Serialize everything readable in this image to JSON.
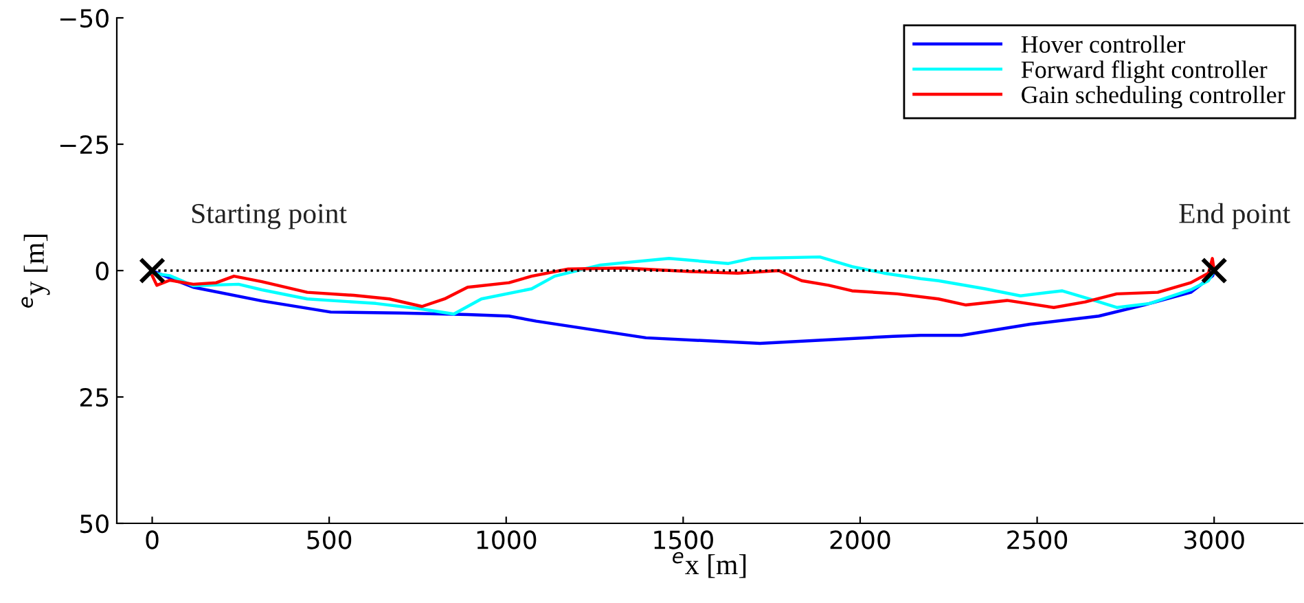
{
  "chart_data": {
    "type": "line",
    "xlabel": "$^{e}$x [m]",
    "ylabel": "$^{e}$y [m]",
    "xlim": [
      -100,
      3250
    ],
    "ylim": [
      50,
      -50
    ],
    "xticks": [
      0,
      500,
      1000,
      1500,
      2000,
      2500,
      3000
    ],
    "yticks": [
      -50,
      -25,
      0,
      25,
      50
    ],
    "grid": false,
    "legend": "top right",
    "series": [
      {
        "name": "Hover controller",
        "color": "#0000ff",
        "x": [
          0,
          50,
          116,
          310,
          504,
          698,
          891,
          1008,
          1085,
          1395,
          1717,
          2093,
          2171,
          2287,
          2481,
          2674,
          2802,
          2934,
          2996,
          3000
        ],
        "values": [
          0,
          1.5,
          3.3,
          6.0,
          8.2,
          8.4,
          8.7,
          9.0,
          10.0,
          13.3,
          14.4,
          13.0,
          12.8,
          12.8,
          10.6,
          9.0,
          6.8,
          4.3,
          1.0,
          0
        ]
      },
      {
        "name": "Forward flight controller",
        "color": "#00ffff",
        "x": [
          0,
          50,
          116,
          244,
          310,
          438,
          632,
          762,
          852,
          930,
          1072,
          1137,
          1266,
          1460,
          1628,
          1693,
          1886,
          1977,
          2067,
          2171,
          2221,
          2353,
          2453,
          2570,
          2647,
          2725,
          2818,
          2934,
          2984,
          3000
        ],
        "values": [
          0.5,
          1.0,
          3.0,
          2.7,
          3.8,
          5.6,
          6.5,
          7.6,
          8.6,
          5.6,
          3.6,
          1.1,
          -1.1,
          -2.4,
          -1.4,
          -2.4,
          -2.7,
          -0.8,
          0.5,
          1.6,
          2.0,
          3.6,
          5.0,
          4.0,
          5.6,
          7.3,
          6.5,
          3.8,
          2.0,
          0
        ]
      },
      {
        "name": "Gain scheduling controller",
        "color": "#ff0000",
        "x": [
          0,
          13,
          50,
          116,
          181,
          231,
          310,
          438,
          570,
          670,
          762,
          826,
          891,
          1008,
          1072,
          1175,
          1330,
          1524,
          1654,
          1770,
          1835,
          1911,
          1977,
          2105,
          2221,
          2299,
          2415,
          2547,
          2636,
          2725,
          2841,
          2934,
          2984,
          2995,
          3000
        ],
        "values": [
          1.0,
          2.9,
          1.9,
          2.7,
          2.4,
          1.1,
          2.2,
          4.3,
          4.9,
          5.6,
          7.1,
          5.6,
          3.3,
          2.4,
          1.1,
          -0.3,
          -0.5,
          0.2,
          0.5,
          0,
          2.0,
          2.9,
          4.0,
          4.6,
          5.6,
          6.8,
          5.9,
          7.3,
          6.2,
          4.6,
          4.3,
          2.4,
          0.5,
          -2.4,
          0
        ]
      },
      {
        "color": "#000000",
        "x": [
          0,
          3000
        ],
        "values": [
          0,
          0
        ],
        "line_style": "dotted"
      },
      {
        "type": "scatter",
        "color": "#000000",
        "marker": "cross",
        "x": [
          0,
          3000
        ],
        "values": [
          0,
          0
        ]
      }
    ],
    "annotations": [
      {
        "text": "Starting point",
        "x": 0,
        "y": 0
      },
      {
        "text": "End point",
        "x": 3000,
        "y": 0
      }
    ]
  }
}
